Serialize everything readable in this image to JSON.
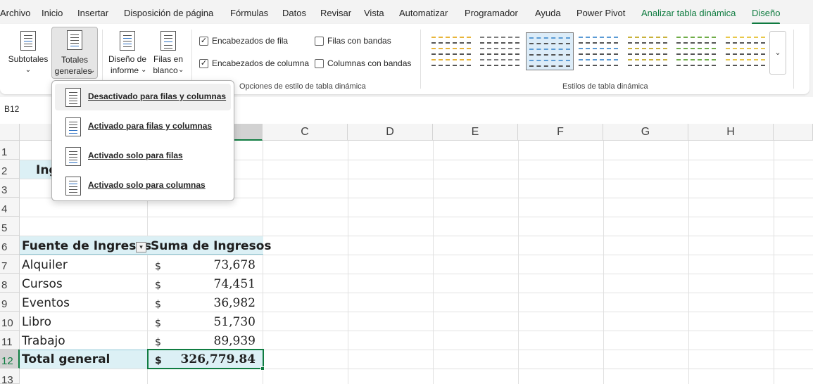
{
  "menu": {
    "tabs": [
      "Archivo",
      "Inicio",
      "Insertar",
      "Disposición de página",
      "Fórmulas",
      "Datos",
      "Revisar",
      "Vista",
      "Automatizar",
      "Programador",
      "Ayuda",
      "Power Pivot",
      "Analizar tabla dinámica",
      "Diseño"
    ],
    "active_tab": "Diseño"
  },
  "ribbon": {
    "subtotales": {
      "line1": "Subtotales",
      "caret": "⌄"
    },
    "totales": {
      "line1": "Totales",
      "line2": "generales",
      "caret": "⌄"
    },
    "diseno_informe": {
      "line1": "Diseño de",
      "line2": "informe",
      "caret": "⌄"
    },
    "filas_blanco": {
      "line1": "Filas en",
      "line2": "blanco",
      "caret": "⌄"
    },
    "options": {
      "encabezados_fila": {
        "label": "Encabezados de fila",
        "checked": true
      },
      "encabezados_columna": {
        "label": "Encabezados de columna",
        "checked": true
      },
      "filas_bandas": {
        "label": "Filas con bandas",
        "checked": false
      },
      "columnas_bandas": {
        "label": "Columnas con bandas",
        "checked": false
      }
    },
    "group_options_label": "Opciones de estilo de tabla dinámica",
    "group_styles_label": "Estilos de tabla dinámica",
    "gallery_more": "⌄",
    "gallery_colors": [
      "#e8b53a",
      "#7f7f7f",
      "#5b9bd5",
      "#5b9bd5",
      "#c9b23c",
      "#70ad47",
      "#e8c84a"
    ]
  },
  "dropdown": {
    "items": [
      {
        "label": "Desactivado para filas y columnas"
      },
      {
        "label": "Activado para filas y columnas"
      },
      {
        "label": "Activado solo para filas"
      },
      {
        "label": "Activado solo para columnas"
      }
    ]
  },
  "namebox": "B12",
  "grid": {
    "columns": [
      "C",
      "D",
      "E",
      "F",
      "G",
      "H"
    ],
    "rows": [
      "1",
      "2",
      "3",
      "4",
      "5",
      "6",
      "7",
      "8",
      "9",
      "10",
      "11",
      "12",
      "13"
    ],
    "title_fragment": "Ing",
    "header": {
      "col1": "Fuente de Ingresos",
      "col2": "Suma de Ingresos",
      "filter_icon": "▾"
    },
    "data": [
      {
        "label": "Alquiler",
        "currency": "$",
        "value": "73,678"
      },
      {
        "label": "Cursos",
        "currency": "$",
        "value": "74,451"
      },
      {
        "label": "Eventos",
        "currency": "$",
        "value": "36,982"
      },
      {
        "label": "Libro",
        "currency": "$",
        "value": "51,730"
      },
      {
        "label": "Trabajo",
        "currency": "$",
        "value": "89,939"
      }
    ],
    "total": {
      "label": "Total general",
      "currency": "$",
      "value": "326,779.84"
    }
  }
}
